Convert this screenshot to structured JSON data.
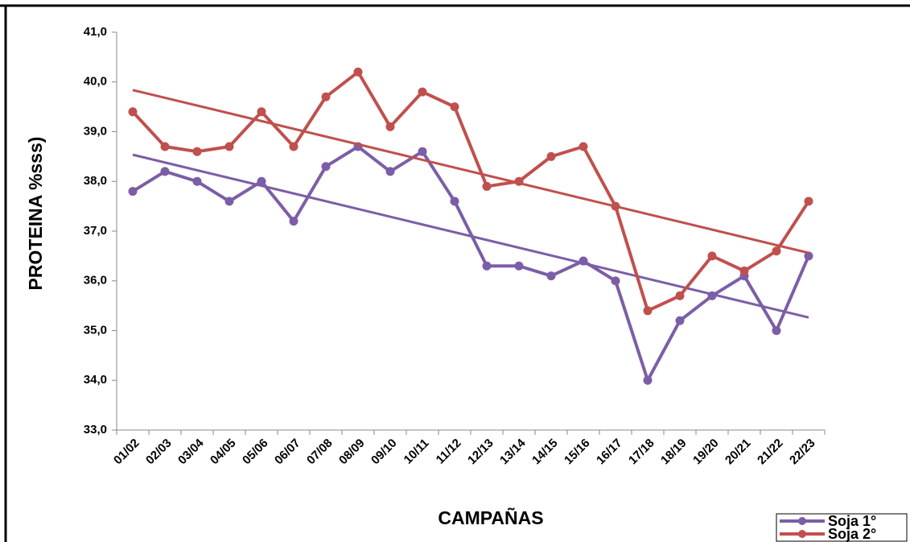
{
  "chart_data": {
    "type": "line",
    "x_label": "CAMPAÑAS",
    "y_label": "PROTEINA %sss)",
    "categories": [
      "01/02",
      "02/03",
      "03/04",
      "04/05",
      "05/06",
      "06/07",
      "07/08",
      "08/09",
      "09/10",
      "10/11",
      "11/12",
      "12/13",
      "13/14",
      "14/15",
      "15/16",
      "16/17",
      "17/18",
      "18/19",
      "19/20",
      "20/21",
      "21/22",
      "22/23"
    ],
    "series": [
      {
        "name": "Soja 1°",
        "color": "#7b5ea7",
        "values": [
          37.8,
          38.2,
          38.0,
          37.6,
          38.0,
          37.2,
          38.3,
          38.7,
          38.2,
          38.6,
          37.6,
          36.3,
          36.3,
          36.1,
          36.4,
          36.0,
          34.0,
          35.2,
          35.7,
          36.1,
          35.0,
          36.5
        ]
      },
      {
        "name": "Soja 2°",
        "color": "#c0504d",
        "values": [
          39.4,
          38.7,
          38.6,
          38.7,
          39.4,
          38.7,
          39.7,
          40.2,
          39.1,
          39.8,
          39.5,
          37.9,
          38.0,
          38.5,
          38.7,
          37.5,
          35.4,
          35.7,
          36.5,
          36.2,
          36.6,
          37.6
        ]
      }
    ],
    "trendline": true,
    "ylim": [
      33,
      41
    ],
    "yticks": [
      {
        "value": 33,
        "label": "33,0"
      },
      {
        "value": 34,
        "label": "34,0"
      },
      {
        "value": 35,
        "label": "35,0"
      },
      {
        "value": 36,
        "label": "36,0"
      },
      {
        "value": 37,
        "label": "37,0"
      },
      {
        "value": 38,
        "label": "38,0"
      },
      {
        "value": 39,
        "label": "39,0"
      },
      {
        "value": 40,
        "label": "40,0"
      },
      {
        "value": 41,
        "label": "41,0"
      }
    ],
    "grid": false,
    "legend": "bottom-right"
  }
}
